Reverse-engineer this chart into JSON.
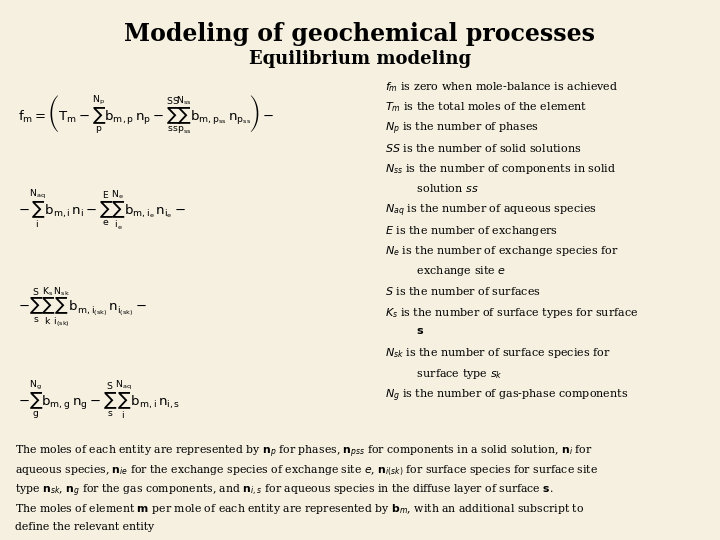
{
  "title": "Modeling of geochemical processes",
  "subtitle": "Equilibrium modeling",
  "background_color": "#f5f0e0",
  "title_color": "#000000",
  "title_fontsize": 17,
  "subtitle_fontsize": 13,
  "eq_fontsize": 9.5,
  "desc_fontsize": 8.0,
  "body_fontsize": 7.8
}
